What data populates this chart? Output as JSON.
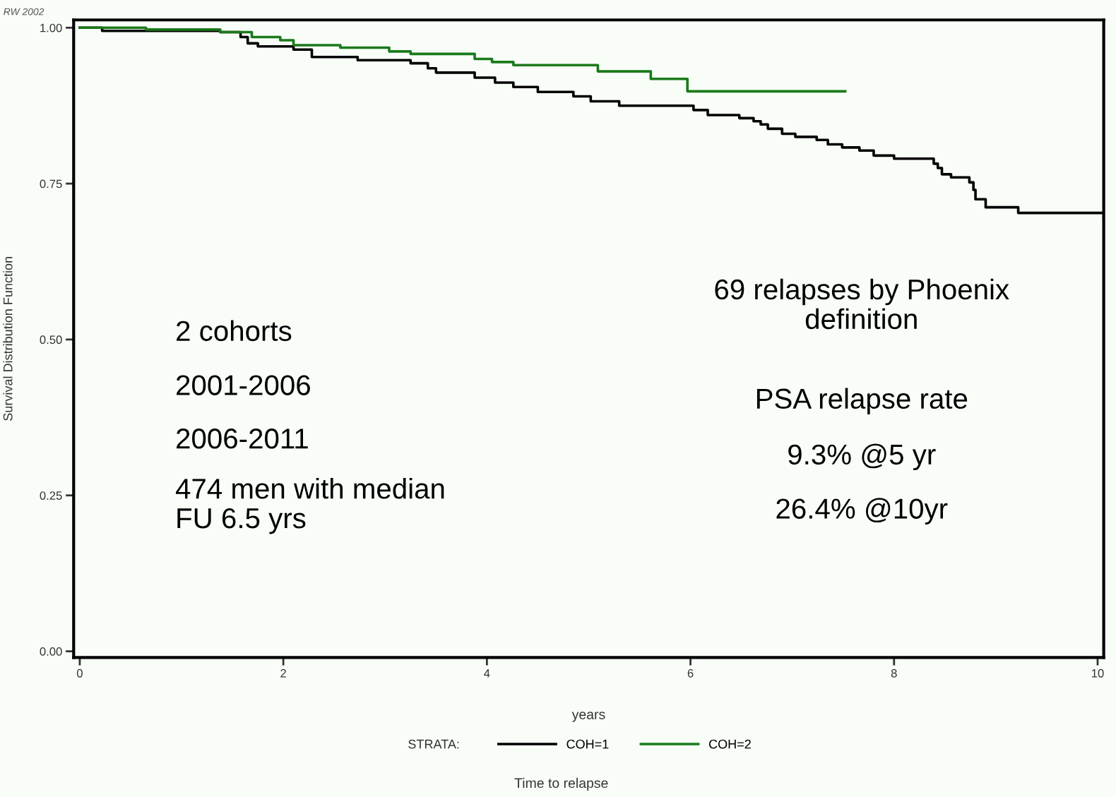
{
  "chart_data": {
    "type": "step",
    "xlabel": "years",
    "ylabel": "Survival Distribution Function",
    "legend_title": "STRATA:",
    "legend": "bottom",
    "grid": false,
    "xlim": [
      -0.06,
      10.06
    ],
    "ylim": [
      -0.01,
      1.0125
    ],
    "xticks": [
      0,
      2,
      4,
      6,
      8,
      10
    ],
    "yticks": [
      {
        "value": 0,
        "label": "0.00"
      },
      {
        "value": 0.25,
        "label": "0.25"
      },
      {
        "value": 0.5,
        "label": "0.50"
      },
      {
        "value": 0.75,
        "label": "0.75"
      },
      {
        "value": 1,
        "label": "1.00"
      }
    ],
    "series": [
      {
        "name": "COH=1",
        "color": "#000000",
        "x": [
          0,
          0.22,
          1.38,
          1.58,
          1.65,
          1.75,
          2.1,
          2.28,
          2.73,
          3.25,
          3.42,
          3.5,
          3.88,
          4.08,
          4.26,
          4.5,
          4.85,
          5.02,
          5.3,
          6.03,
          6.17,
          6.48,
          6.62,
          6.69,
          6.76,
          6.9,
          7.03,
          7.24,
          7.35,
          7.49,
          7.66,
          7.8,
          8.0,
          8.39,
          8.43,
          8.47,
          8.56,
          8.74,
          8.78,
          8.8,
          8.9,
          9.22,
          10.06
        ],
        "values": [
          1.0,
          0.995,
          0.993,
          0.985,
          0.975,
          0.97,
          0.965,
          0.953,
          0.948,
          0.943,
          0.935,
          0.928,
          0.92,
          0.912,
          0.905,
          0.897,
          0.89,
          0.882,
          0.875,
          0.868,
          0.86,
          0.855,
          0.85,
          0.845,
          0.838,
          0.83,
          0.825,
          0.82,
          0.813,
          0.808,
          0.803,
          0.795,
          0.79,
          0.782,
          0.775,
          0.765,
          0.76,
          0.752,
          0.74,
          0.725,
          0.712,
          0.703,
          0.693
        ]
      },
      {
        "name": "COH=2",
        "color": "#1a7a1a",
        "x": [
          0,
          0.65,
          1.38,
          1.69,
          1.97,
          2.1,
          2.56,
          3.04,
          3.25,
          3.88,
          4.05,
          4.26,
          5.09,
          5.61,
          5.97,
          7.52
        ],
        "values": [
          1.0,
          0.997,
          0.993,
          0.985,
          0.98,
          0.972,
          0.968,
          0.962,
          0.958,
          0.95,
          0.945,
          0.94,
          0.93,
          0.918,
          0.898,
          0.898
        ]
      }
    ],
    "annotations": [
      "RW 2002",
      "2 cohorts",
      "2001-2006",
      "2006-2011",
      "474 men with median\nFU 6.5 yrs",
      "69 relapses by Phoenix\ndefinition",
      "PSA relapse rate",
      "9.3% @5 yr",
      "26.4% @10yr",
      "Time to relapse"
    ]
  }
}
